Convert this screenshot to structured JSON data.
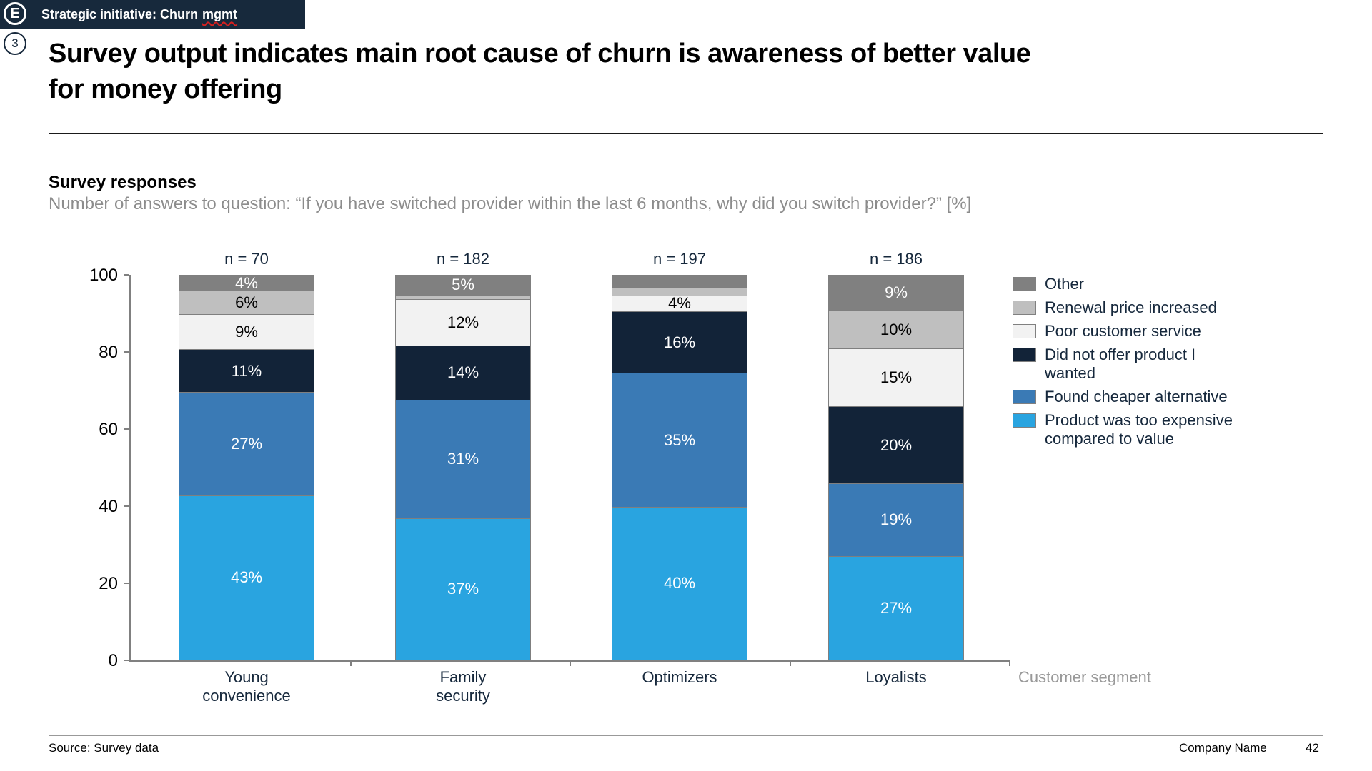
{
  "banner": {
    "badge": "E",
    "label": "Strategic initiative: Churn",
    "misspelled_word": "mgmt"
  },
  "page_badge": "3",
  "title": "Survey output indicates main root cause of churn is awareness of better value for money offering",
  "title_lines": [
    "Survey output indicates main root cause of churn is awareness of better value",
    "for money offering"
  ],
  "chart_header": {
    "title": "Survey responses",
    "subtitle": "Number of answers to question: “If you have switched provider within the last 6 months, why did you switch provider?” [%]"
  },
  "chart_data": {
    "type": "bar",
    "stacked": true,
    "title": "Survey responses",
    "subtitle": "Number of answers to question: “If you have switched provider within the last 6 months, why did you switch provider?” [%]",
    "categories": [
      "Young convenience",
      "Family security",
      "Optimizers",
      "Loyalists"
    ],
    "category_lines": [
      [
        "Young",
        "convenience"
      ],
      [
        "Family",
        "security"
      ],
      [
        "Optimizers"
      ],
      [
        "Loyalists"
      ]
    ],
    "n": [
      70,
      182,
      197,
      186
    ],
    "n_labels": [
      "n = 70",
      "n = 182",
      "n = 197",
      "n = 186"
    ],
    "series": [
      {
        "name": "Product was too expensive compared to value",
        "color": "#29a4e0",
        "label_color": "#ffffff",
        "values": [
          43,
          37,
          40,
          27
        ]
      },
      {
        "name": "Found cheaper alternative",
        "color": "#3a7ab5",
        "label_color": "#ffffff",
        "values": [
          27,
          31,
          35,
          19
        ]
      },
      {
        "name": "Did not offer product I wanted",
        "color": "#122338",
        "label_color": "#ffffff",
        "values": [
          11,
          14,
          16,
          20
        ]
      },
      {
        "name": "Poor customer service",
        "color": "#f2f2f2",
        "label_color": "#000000",
        "values": [
          9,
          12,
          4,
          15
        ]
      },
      {
        "name": "Renewal price increased",
        "color": "#bfbfbf",
        "label_color": "#000000",
        "values": [
          6,
          1,
          2,
          10
        ]
      },
      {
        "name": "Other",
        "color": "#808080",
        "label_color": "#ffffff",
        "values": [
          4,
          5,
          3,
          9
        ]
      }
    ],
    "label_min_value": 4,
    "label_suffix": "%",
    "y_ticks": [
      0,
      20,
      40,
      60,
      80,
      100
    ],
    "ylim": [
      0,
      100
    ],
    "xlabel": "Customer segment",
    "grid": false,
    "legend_position": "right",
    "legend_order_top_to_bottom": [
      "Other",
      "Renewal price increased",
      "Poor customer service",
      "Did not offer product I wanted",
      "Found cheaper alternative",
      "Product was too expensive compared to value"
    ]
  },
  "footer": {
    "source": "Source: Survey data",
    "company": "Company Name",
    "page": "42"
  },
  "colors": {
    "banner_bg": "#17293c",
    "ink_navy": "#16283c",
    "axis_gray": "#808080",
    "subtitle_gray": "#8c8c8c",
    "xlabel_gray": "#999999",
    "misspell_red": "#d42020"
  }
}
